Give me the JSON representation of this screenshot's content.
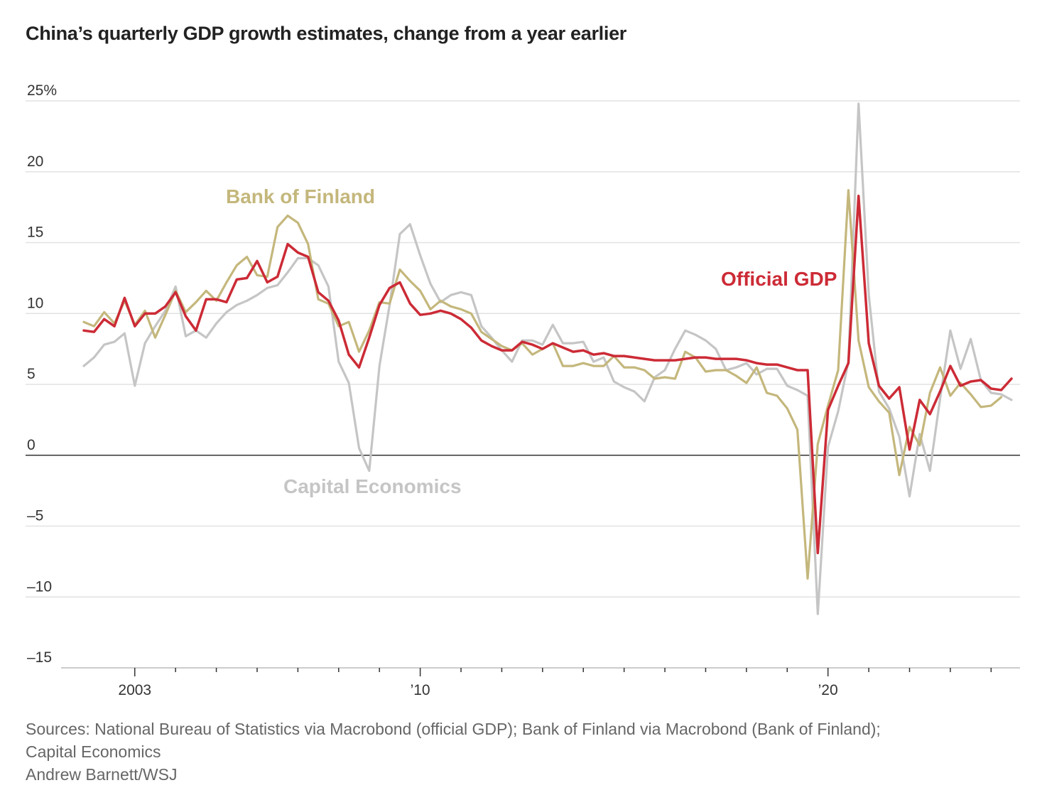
{
  "title": "China’s quarterly GDP growth estimates, change from a year earlier",
  "footer": {
    "sources_line1": "Sources: National Bureau of Statistics via Macrobond (official GDP); Bank of Finland via Macrobond (Bank of Finland);",
    "sources_line2": "Capital Economics",
    "credit": "Andrew Barnett/WSJ"
  },
  "chart_data": {
    "type": "line",
    "title": "China’s quarterly GDP growth estimates, change from a year earlier",
    "xlabel": "",
    "ylabel": "",
    "ylim": [
      -15,
      25
    ],
    "xlim": [
      2001.75,
      2025.5
    ],
    "y_ticks": [
      {
        "value": 25,
        "label": "25%"
      },
      {
        "value": 20,
        "label": "20"
      },
      {
        "value": 15,
        "label": "15"
      },
      {
        "value": 10,
        "label": "10"
      },
      {
        "value": 5,
        "label": "5"
      },
      {
        "value": 0,
        "label": "0"
      },
      {
        "value": -5,
        "label": "–5"
      },
      {
        "value": -10,
        "label": "–10"
      },
      {
        "value": -15,
        "label": "–15"
      }
    ],
    "x_ticks": [
      {
        "value": 2003,
        "label": "2003"
      },
      {
        "value": 2010,
        "label": "’10"
      },
      {
        "value": 2020,
        "label": "’20"
      }
    ],
    "x_minor_ticks": [
      2004,
      2005,
      2006,
      2007,
      2008,
      2009,
      2011,
      2012,
      2013,
      2014,
      2015,
      2016,
      2017,
      2018,
      2019,
      2021,
      2022,
      2023,
      2024
    ],
    "x_start": 2001.75,
    "x_step": 0.25,
    "series": [
      {
        "name": "Official GDP",
        "color": "#cc2b36",
        "label": "Official GDP",
        "values": [
          8.8,
          8.7,
          9.6,
          9.1,
          11.1,
          9.1,
          10.0,
          10.0,
          10.5,
          11.5,
          9.8,
          8.8,
          11.0,
          11.0,
          10.8,
          12.4,
          12.5,
          13.7,
          12.2,
          12.6,
          14.9,
          14.3,
          14.0,
          11.5,
          10.9,
          9.5,
          7.1,
          6.2,
          8.3,
          10.6,
          11.8,
          12.2,
          10.7,
          9.9,
          10.0,
          10.2,
          10.0,
          9.6,
          9.0,
          8.1,
          7.7,
          7.4,
          7.4,
          8.0,
          7.8,
          7.5,
          7.9,
          7.6,
          7.3,
          7.4,
          7.1,
          7.2,
          7.0,
          7.0,
          6.9,
          6.8,
          6.7,
          6.7,
          6.7,
          6.8,
          6.9,
          6.9,
          6.8,
          6.8,
          6.8,
          6.7,
          6.5,
          6.4,
          6.4,
          6.2,
          6.0,
          6.0,
          -6.9,
          3.2,
          4.9,
          6.5,
          18.3,
          7.9,
          4.9,
          4.0,
          4.8,
          0.4,
          3.9,
          2.9,
          4.5,
          6.3,
          4.9,
          5.2,
          5.3,
          4.7,
          4.6,
          5.4
        ]
      },
      {
        "name": "Bank of Finland",
        "color": "#c4b77c",
        "label": "Bank of Finland",
        "values": [
          9.4,
          9.1,
          10.1,
          9.3,
          10.9,
          9.2,
          10.2,
          8.3,
          9.9,
          11.6,
          10.1,
          10.8,
          11.6,
          10.9,
          12.2,
          13.4,
          14.0,
          12.7,
          12.6,
          16.1,
          16.9,
          16.4,
          14.9,
          11.0,
          10.7,
          9.1,
          9.4,
          7.3,
          8.8,
          10.8,
          10.7,
          13.1,
          12.3,
          11.6,
          10.3,
          10.9,
          10.5,
          10.3,
          10.0,
          8.7,
          8.2,
          7.7,
          7.4,
          7.9,
          7.1,
          7.5,
          7.9,
          6.3,
          6.3,
          6.5,
          6.3,
          6.3,
          7.0,
          6.2,
          6.2,
          6.0,
          5.4,
          5.5,
          5.4,
          7.3,
          6.9,
          5.9,
          6.0,
          6.0,
          5.6,
          5.1,
          6.2,
          4.4,
          4.2,
          3.3,
          1.8,
          -8.7,
          0.8,
          3.5,
          6.0,
          18.7,
          8.1,
          4.8,
          3.8,
          3.0,
          -1.4,
          2.0,
          0.7,
          4.4,
          6.2,
          4.2,
          5.1,
          4.3,
          3.4,
          3.5,
          4.1
        ]
      },
      {
        "name": "Capital Economics",
        "color": "#c5c5c5",
        "label": "Capital Economics",
        "values": [
          6.3,
          6.9,
          7.8,
          8.0,
          8.6,
          4.9,
          7.9,
          9.1,
          10.2,
          11.9,
          8.4,
          8.8,
          8.3,
          9.3,
          10.1,
          10.6,
          10.9,
          11.3,
          11.8,
          12.0,
          12.9,
          13.9,
          13.9,
          13.4,
          11.9,
          6.6,
          5.1,
          0.5,
          -1.1,
          6.3,
          10.6,
          15.6,
          16.3,
          14.1,
          12.1,
          10.8,
          11.3,
          11.5,
          11.3,
          9.1,
          8.3,
          7.4,
          6.6,
          8.1,
          8.1,
          7.8,
          9.2,
          7.9,
          7.9,
          8.0,
          6.6,
          6.9,
          5.2,
          4.8,
          4.5,
          3.8,
          5.5,
          6.0,
          7.5,
          8.8,
          8.5,
          8.1,
          7.5,
          6.0,
          6.2,
          6.5,
          5.7,
          6.1,
          6.1,
          4.9,
          4.6,
          4.2,
          -11.2,
          0.6,
          3.1,
          6.6,
          24.8,
          11.3,
          4.5,
          3.3,
          1.3,
          -2.9,
          1.5,
          -1.1,
          4.0,
          8.8,
          6.1,
          8.2,
          5.3,
          4.4,
          4.3,
          3.9
        ]
      }
    ],
    "annotations": [
      {
        "text": "Bank of Finland",
        "series": "Bank of Finland"
      },
      {
        "text": "Official GDP",
        "series": "Official GDP"
      },
      {
        "text": "Capital Economics",
        "series": "Capital Economics"
      }
    ]
  }
}
